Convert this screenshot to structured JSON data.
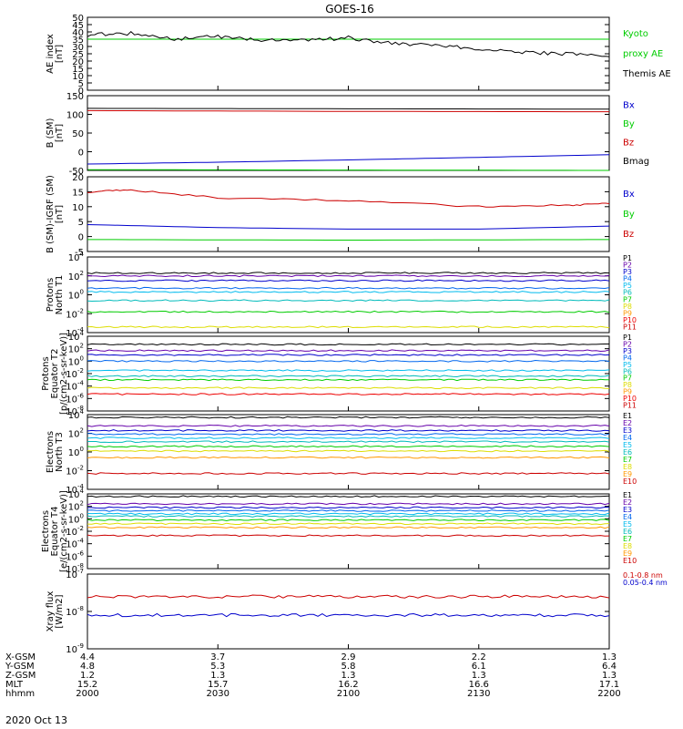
{
  "title": "GOES-16",
  "date": "2020 Oct 13",
  "x_axis": {
    "row_labels": [
      "X-GSM",
      "Y-GSM",
      "Z-GSM",
      "MLT",
      "hhmm"
    ],
    "ticks": [
      {
        "values": [
          "4.4",
          "4.8",
          "1.2",
          "15.2",
          "2000"
        ]
      },
      {
        "values": [
          "3.7",
          "5.3",
          "1.3",
          "15.7",
          "2030"
        ]
      },
      {
        "values": [
          "2.9",
          "5.8",
          "1.3",
          "16.2",
          "2100"
        ]
      },
      {
        "values": [
          "2.2",
          "6.1",
          "1.3",
          "16.6",
          "2130"
        ]
      },
      {
        "values": [
          "1.3",
          "6.4",
          "1.3",
          "17.1",
          "2200"
        ]
      }
    ]
  },
  "panels": [
    {
      "id": "ae",
      "ylabel": [
        "AE index",
        "[nT]"
      ],
      "scale": "linear",
      "ticks": [
        "0",
        "5",
        "10",
        "15",
        "20",
        "25",
        "30",
        "35",
        "40",
        "45",
        "50"
      ],
      "legend": [
        {
          "text": "Kyoto",
          "color": "#00cc00"
        },
        {
          "text": "proxy AE",
          "color": "#00cc00"
        },
        {
          "text": "Themis AE",
          "color": "#000000"
        }
      ]
    },
    {
      "id": "bsm",
      "ylabel": [
        "B (SM)",
        "[nT]"
      ],
      "scale": "linear",
      "ticks": [
        "-50",
        "0",
        "50",
        "100",
        "150"
      ],
      "legend": [
        {
          "text": "Bx",
          "color": "#0000cc"
        },
        {
          "text": "By",
          "color": "#00cc00"
        },
        {
          "text": "Bz",
          "color": "#cc0000"
        },
        {
          "text": "Bmag",
          "color": "#000000"
        }
      ]
    },
    {
      "id": "bigrf",
      "ylabel": [
        "B (SM)-IGRF (SM)",
        "[nT]"
      ],
      "scale": "linear",
      "ticks": [
        "-5",
        "0",
        "5",
        "10",
        "15",
        "20"
      ],
      "legend": [
        {
          "text": "Bx",
          "color": "#0000cc"
        },
        {
          "text": "By",
          "color": "#00cc00"
        },
        {
          "text": "Bz",
          "color": "#cc0000"
        }
      ]
    },
    {
      "id": "pn",
      "ylabel": [
        "Protons",
        "North T1"
      ],
      "scale": "log",
      "ticks": [
        "10-4",
        "10-2",
        "100",
        "102",
        "104"
      ],
      "legend": [
        {
          "text": "P1",
          "color": "#000000"
        },
        {
          "text": "P2",
          "color": "#6600aa"
        },
        {
          "text": "P3",
          "color": "#0000cc"
        },
        {
          "text": "P4",
          "color": "#0066ee"
        },
        {
          "text": "P5",
          "color": "#00bbee"
        },
        {
          "text": "P6",
          "color": "#00bbbb"
        },
        {
          "text": "P7",
          "color": "#00cc00"
        },
        {
          "text": "P8",
          "color": "#dddd00"
        },
        {
          "text": "P9",
          "color": "#ff9900"
        },
        {
          "text": "P10",
          "color": "#ee0000"
        },
        {
          "text": "P11",
          "color": "#cc0000"
        }
      ]
    },
    {
      "id": "pe",
      "ylabel": [
        "Protons",
        "Equator T2",
        "[p/(cm2-s-sr-keV)]"
      ],
      "scale": "log",
      "ticks": [
        "10-8",
        "10-6",
        "10-4",
        "10-2",
        "100",
        "102",
        "104"
      ],
      "legend": [
        {
          "text": "P1",
          "color": "#000000"
        },
        {
          "text": "P2",
          "color": "#6600aa"
        },
        {
          "text": "P3",
          "color": "#0000cc"
        },
        {
          "text": "P4",
          "color": "#0066ee"
        },
        {
          "text": "P5",
          "color": "#00bbee"
        },
        {
          "text": "P6",
          "color": "#00bbbb"
        },
        {
          "text": "P7",
          "color": "#00cc00"
        },
        {
          "text": "P8",
          "color": "#dddd00"
        },
        {
          "text": "P9",
          "color": "#ff9900"
        },
        {
          "text": "P10",
          "color": "#ee0000"
        },
        {
          "text": "P11",
          "color": "#cc0000"
        }
      ]
    },
    {
      "id": "en",
      "ylabel": [
        "Electrons",
        "North T3"
      ],
      "scale": "log",
      "ticks": [
        "10-4",
        "10-2",
        "100",
        "102",
        "104"
      ],
      "legend": [
        {
          "text": "E1",
          "color": "#000000"
        },
        {
          "text": "E2",
          "color": "#6600aa"
        },
        {
          "text": "E3",
          "color": "#0000cc"
        },
        {
          "text": "E4",
          "color": "#0066ee"
        },
        {
          "text": "E5",
          "color": "#00bbee"
        },
        {
          "text": "E6",
          "color": "#00bbbb"
        },
        {
          "text": "E7",
          "color": "#00cc00"
        },
        {
          "text": "E8",
          "color": "#dddd00"
        },
        {
          "text": "E9",
          "color": "#ff9900"
        },
        {
          "text": "E10",
          "color": "#cc0000"
        }
      ]
    },
    {
      "id": "ee",
      "ylabel": [
        "Electrons",
        "Equator T4",
        "[e/(cm2-s-sr-keV)]"
      ],
      "scale": "log",
      "ticks": [
        "10-8",
        "10-6",
        "10-4",
        "10-2",
        "100",
        "102",
        "104"
      ],
      "legend": [
        {
          "text": "E1",
          "color": "#000000"
        },
        {
          "text": "E2",
          "color": "#6600aa"
        },
        {
          "text": "E3",
          "color": "#0000cc"
        },
        {
          "text": "E4",
          "color": "#0066ee"
        },
        {
          "text": "E5",
          "color": "#00bbee"
        },
        {
          "text": "E6",
          "color": "#00bbbb"
        },
        {
          "text": "E7",
          "color": "#00cc00"
        },
        {
          "text": "E8",
          "color": "#dddd00"
        },
        {
          "text": "E9",
          "color": "#ff9900"
        },
        {
          "text": "E10",
          "color": "#cc0000"
        }
      ]
    },
    {
      "id": "xray",
      "ylabel": [
        "Xray flux",
        "[W/m2]"
      ],
      "scale": "log",
      "ticks": [
        "10-9",
        "10-8",
        "10-7"
      ],
      "legend": [
        {
          "text": "0.1-0.8 nm",
          "color": "#cc0000"
        },
        {
          "text": "0.05-0.4 nm",
          "color": "#0000cc"
        }
      ]
    }
  ],
  "chart_data": [
    {
      "type": "line",
      "panel": "ae",
      "ylim": [
        0,
        50
      ],
      "series": [
        {
          "name": "Kyoto proxy AE",
          "color": "#00cc00",
          "x": [
            0,
            120
          ],
          "y": [
            35,
            35
          ]
        },
        {
          "name": "Themis AE",
          "color": "#000000",
          "x": [
            0,
            10,
            20,
            30,
            40,
            50,
            60,
            70,
            80,
            90,
            100,
            110,
            120
          ],
          "y": [
            38,
            39,
            35,
            37,
            34,
            34,
            36,
            32,
            31,
            28,
            26,
            25,
            23
          ]
        }
      ]
    },
    {
      "type": "line",
      "panel": "bsm",
      "ylim": [
        -50,
        150
      ],
      "series": [
        {
          "name": "Bx",
          "color": "#0000cc",
          "x": [
            0,
            30,
            60,
            90,
            120
          ],
          "y": [
            -33,
            -28,
            -22,
            -15,
            -8
          ]
        },
        {
          "name": "By",
          "color": "#00cc00",
          "x": [
            0,
            60,
            120
          ],
          "y": [
            -48,
            -49,
            -50
          ]
        },
        {
          "name": "Bz",
          "color": "#cc0000",
          "x": [
            0,
            60,
            120
          ],
          "y": [
            110,
            108,
            107
          ]
        },
        {
          "name": "Bmag",
          "color": "#000000",
          "x": [
            0,
            60,
            120
          ],
          "y": [
            116,
            115,
            114
          ]
        }
      ]
    },
    {
      "type": "line",
      "panel": "bigrf",
      "ylim": [
        -5,
        20
      ],
      "series": [
        {
          "name": "Bx",
          "color": "#0000cc",
          "x": [
            0,
            30,
            60,
            90,
            120
          ],
          "y": [
            4,
            3,
            2.5,
            2.5,
            3.5
          ]
        },
        {
          "name": "By",
          "color": "#00cc00",
          "x": [
            0,
            60,
            120
          ],
          "y": [
            -1,
            -1.2,
            -1
          ]
        },
        {
          "name": "Bz",
          "color": "#cc0000",
          "x": [
            0,
            10,
            30,
            60,
            90,
            110,
            120
          ],
          "y": [
            15,
            15.5,
            13,
            12,
            10,
            10.5,
            11
          ]
        }
      ]
    },
    {
      "type": "line",
      "panel": "pn",
      "scale": "log",
      "ylim": [
        -4,
        4
      ],
      "series": [
        {
          "name": "P1",
          "color": "#000000",
          "y": [
            2.3
          ]
        },
        {
          "name": "P2",
          "color": "#6600aa",
          "y": [
            2.0
          ]
        },
        {
          "name": "P3",
          "color": "#0000cc",
          "y": [
            1.5
          ]
        },
        {
          "name": "P4",
          "color": "#0066ee",
          "y": [
            0.7
          ]
        },
        {
          "name": "P5",
          "color": "#00bbee",
          "y": [
            0.3
          ]
        },
        {
          "name": "P6",
          "color": "#00bbbb",
          "y": [
            -0.6
          ]
        },
        {
          "name": "P7",
          "color": "#00cc00",
          "y": [
            -1.8
          ]
        },
        {
          "name": "P8",
          "color": "#dddd00",
          "y": [
            -3.4
          ]
        }
      ]
    },
    {
      "type": "line",
      "panel": "pe",
      "scale": "log",
      "ylim": [
        -8,
        4
      ],
      "series": [
        {
          "name": "P1",
          "color": "#000000",
          "y": [
            2.7
          ]
        },
        {
          "name": "P2",
          "color": "#6600aa",
          "y": [
            1.7
          ]
        },
        {
          "name": "P3",
          "color": "#0000cc",
          "y": [
            1.0
          ]
        },
        {
          "name": "P4",
          "color": "#0066ee",
          "y": [
            0.0
          ]
        },
        {
          "name": "P5",
          "color": "#00bbee",
          "y": [
            -1.5
          ]
        },
        {
          "name": "P6",
          "color": "#00bbbb",
          "y": [
            -2.4
          ]
        },
        {
          "name": "P7",
          "color": "#00cc00",
          "y": [
            -3.0
          ]
        },
        {
          "name": "P8",
          "color": "#dddd00",
          "y": [
            -4.3
          ]
        },
        {
          "name": "P10",
          "color": "#ee0000",
          "y": [
            -5.3
          ]
        }
      ]
    },
    {
      "type": "line",
      "panel": "en",
      "scale": "log",
      "ylim": [
        -4,
        4
      ],
      "series": [
        {
          "name": "E1",
          "color": "#000000",
          "y": [
            3.7
          ]
        },
        {
          "name": "E2",
          "color": "#6600aa",
          "y": [
            2.8
          ]
        },
        {
          "name": "E3",
          "color": "#0000cc",
          "y": [
            2.3
          ]
        },
        {
          "name": "E4",
          "color": "#0066ee",
          "y": [
            1.9
          ]
        },
        {
          "name": "E5",
          "color": "#00bbee",
          "y": [
            1.5
          ]
        },
        {
          "name": "E6",
          "color": "#00bbbb",
          "y": [
            1.1
          ]
        },
        {
          "name": "E7",
          "color": "#00cc00",
          "y": [
            0.6
          ]
        },
        {
          "name": "E8",
          "color": "#dddd00",
          "y": [
            0.1
          ]
        },
        {
          "name": "E9",
          "color": "#ff9900",
          "y": [
            -0.6
          ]
        },
        {
          "name": "E10",
          "color": "#cc0000",
          "y": [
            -2.3
          ]
        }
      ]
    },
    {
      "type": "line",
      "panel": "ee",
      "scale": "log",
      "ylim": [
        -8,
        4
      ],
      "series": [
        {
          "name": "E1",
          "color": "#000000",
          "y": [
            3.6
          ]
        },
        {
          "name": "E2",
          "color": "#6600aa",
          "y": [
            2.4
          ]
        },
        {
          "name": "E3",
          "color": "#0000cc",
          "y": [
            1.8
          ]
        },
        {
          "name": "E4",
          "color": "#0066ee",
          "y": [
            1.3
          ]
        },
        {
          "name": "E5",
          "color": "#00bbee",
          "y": [
            0.8
          ]
        },
        {
          "name": "E6",
          "color": "#00bbbb",
          "y": [
            0.4
          ]
        },
        {
          "name": "E7",
          "color": "#00cc00",
          "y": [
            -0.2
          ]
        },
        {
          "name": "E8",
          "color": "#dddd00",
          "y": [
            -0.8
          ]
        },
        {
          "name": "E9",
          "color": "#ff9900",
          "y": [
            -1.4
          ]
        },
        {
          "name": "E10",
          "color": "#cc0000",
          "y": [
            -2.7
          ]
        }
      ]
    },
    {
      "type": "line",
      "panel": "xray",
      "scale": "log",
      "ylim": [
        -9,
        -7
      ],
      "series": [
        {
          "name": "0.1-0.8 nm",
          "color": "#cc0000",
          "y": [
            -7.6
          ]
        },
        {
          "name": "0.05-0.4 nm",
          "color": "#0000cc",
          "y": [
            -8.1
          ]
        }
      ]
    }
  ]
}
